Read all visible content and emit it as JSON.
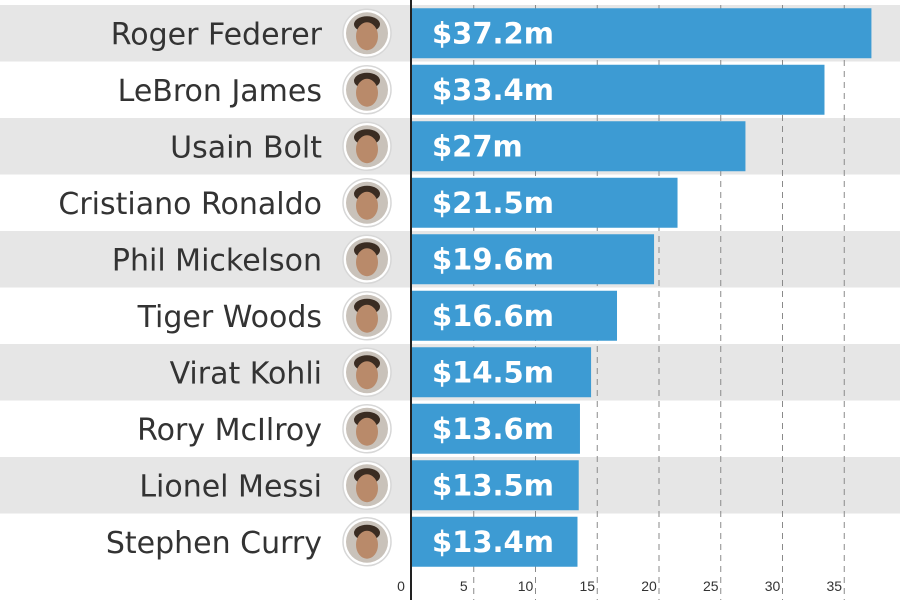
{
  "chart_data": {
    "type": "bar",
    "orientation": "horizontal",
    "categories": [
      "Roger Federer",
      "LeBron James",
      "Usain Bolt",
      "Cristiano Ronaldo",
      "Phil Mickelson",
      "Tiger Woods",
      "Virat Kohli",
      "Rory McIlroy",
      "Lionel Messi",
      "Stephen Curry"
    ],
    "values": [
      37.2,
      33.4,
      27,
      21.5,
      19.6,
      16.6,
      14.5,
      13.6,
      13.5,
      13.4
    ],
    "value_labels": [
      "$37.2m",
      "$33.4m",
      "$27m",
      "$21.5m",
      "$19.6m",
      "$16.6m",
      "$14.5m",
      "$13.6m",
      "$13.5m",
      "$13.4m"
    ],
    "x_ticks": [
      0,
      5,
      10,
      15,
      20,
      25,
      30,
      35
    ],
    "xlim": [
      0,
      40
    ],
    "grid": true,
    "colors": {
      "bar": "#3d9bd3",
      "band": "#e6e6e6",
      "text": "#333333",
      "value_text": "#ffffff"
    },
    "avatar_icon": "athlete-photo-icon"
  }
}
